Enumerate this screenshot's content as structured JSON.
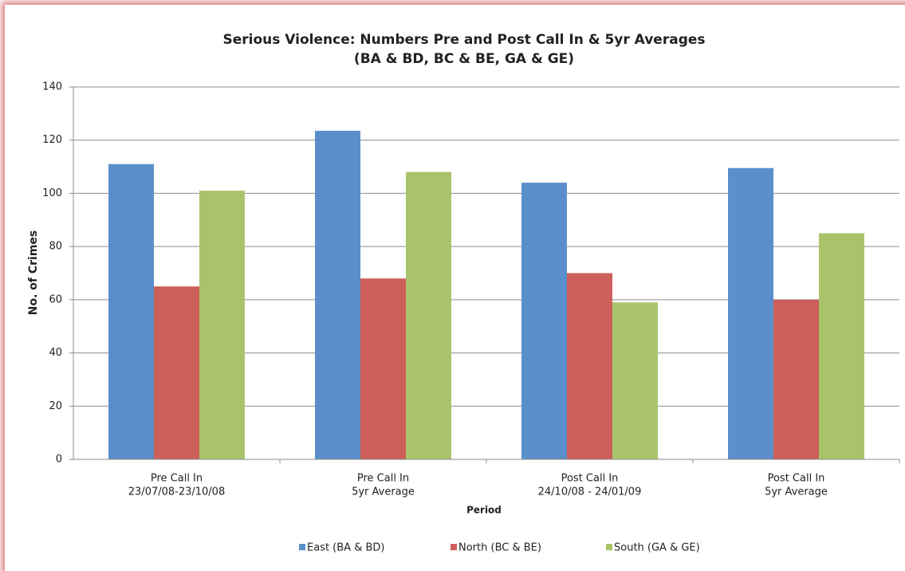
{
  "chart_data": {
    "type": "bar",
    "title": [
      "Serious Violence: Numbers Pre and Post Call In & 5yr Averages",
      "(BA & BD, BC & BE, GA & GE)"
    ],
    "x_label": "Period",
    "y_label": "No. of Crimes",
    "categories": [
      [
        "Pre Call In",
        "23/07/08-23/10/08"
      ],
      [
        "Pre Call In",
        "5yr Average"
      ],
      [
        "Post Call In",
        "24/10/08 - 24/01/09"
      ],
      [
        "Post Call In",
        "5yr Average"
      ]
    ],
    "series": [
      {
        "name": "East (BA & BD)",
        "color": "#5b8fcb",
        "values": [
          111,
          123.5,
          104,
          109.5
        ]
      },
      {
        "name": "North (BC & BE)",
        "color": "#cd5f5a",
        "values": [
          65,
          68,
          70,
          60
        ]
      },
      {
        "name": "South (GA & GE)",
        "color": "#a9c36a",
        "values": [
          101,
          108,
          59,
          85
        ]
      }
    ],
    "ylim": [
      0,
      140
    ],
    "yticks": [
      0,
      20,
      40,
      60,
      80,
      100,
      120,
      140
    ],
    "grid": true,
    "legend": "bottom"
  }
}
